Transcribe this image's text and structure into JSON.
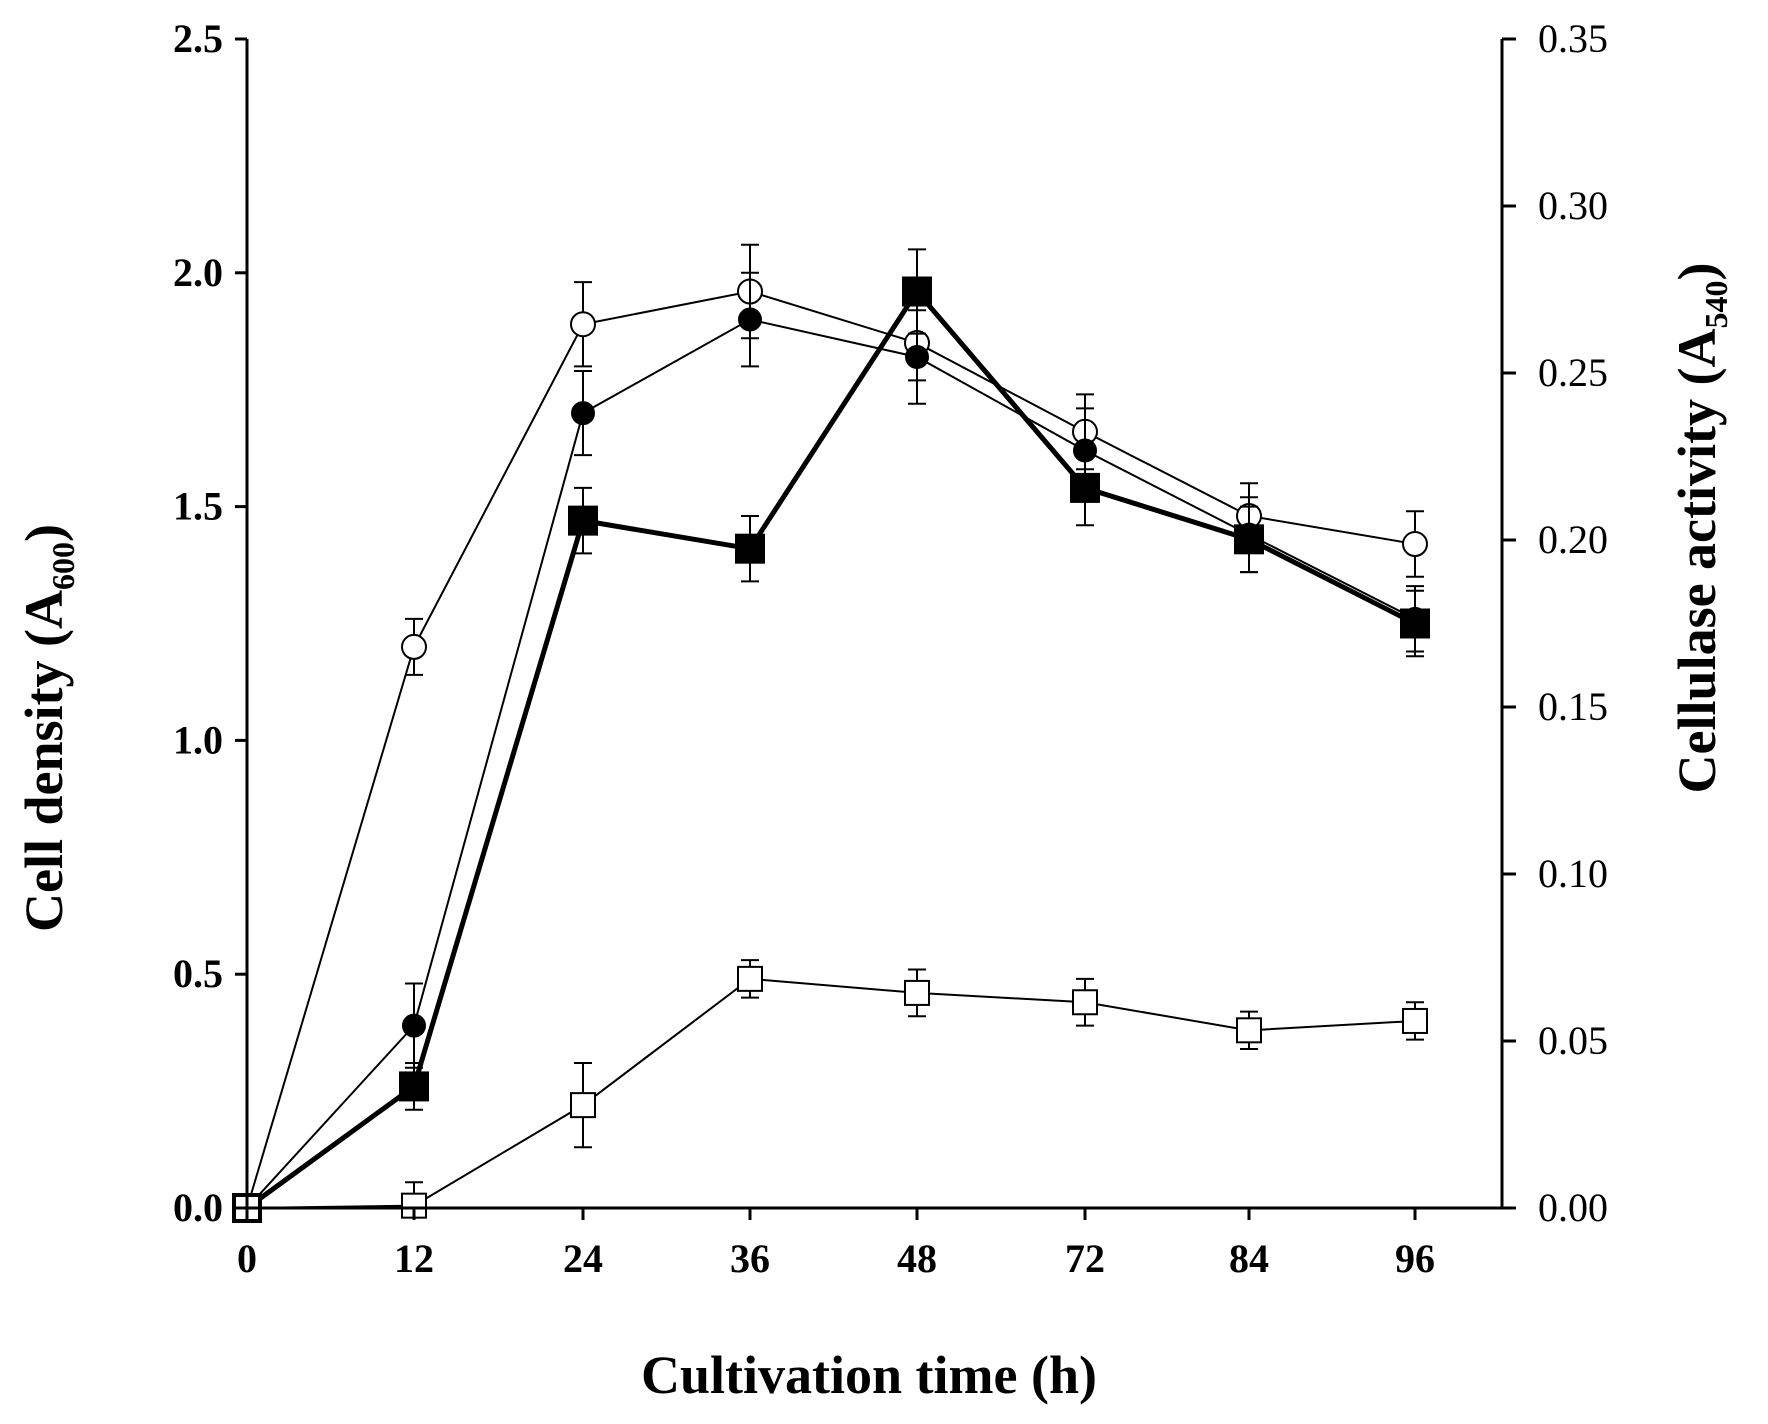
{
  "chart_data": {
    "type": "line",
    "title": "",
    "xlabel": "Cultivation time (h)",
    "ylabel_left": {
      "main": "Cell density (A",
      "sub": "600",
      "close": ")"
    },
    "ylabel_right": {
      "main": "Cellulase activity (A",
      "sub": "540",
      "close": ")"
    },
    "categories": [
      "0",
      "12",
      "24",
      "36",
      "48",
      "72",
      "84",
      "96"
    ],
    "y_left": {
      "range": [
        0,
        2.5
      ],
      "ticks": [
        "0.0",
        "0.5",
        "1.0",
        "1.5",
        "2.0",
        "2.5"
      ]
    },
    "y_right": {
      "range": [
        0,
        0.35
      ],
      "ticks": [
        "0.00",
        "0.05",
        "0.10",
        "0.15",
        "0.20",
        "0.25",
        "0.30",
        "0.35"
      ]
    },
    "series": [
      {
        "name": "open-circle",
        "axis": "left",
        "marker": "circle",
        "filled": false,
        "line_width": 2,
        "values": [
          0,
          1.2,
          1.89,
          1.96,
          1.85,
          1.66,
          1.48,
          1.42
        ],
        "errors": [
          0,
          0.06,
          0.09,
          0.1,
          0.08,
          0.08,
          0.07,
          0.07
        ]
      },
      {
        "name": "filled-circle",
        "axis": "left",
        "marker": "circle",
        "filled": true,
        "line_width": 2,
        "values": [
          0,
          0.39,
          1.7,
          1.9,
          1.82,
          1.62,
          1.44,
          1.26
        ],
        "errors": [
          0,
          0.09,
          0.09,
          0.1,
          0.1,
          0.09,
          0.08,
          0.07
        ]
      },
      {
        "name": "filled-square",
        "axis": "left",
        "marker": "square",
        "filled": true,
        "line_width": 5,
        "values": [
          0,
          0.26,
          1.47,
          1.41,
          1.96,
          1.54,
          1.43,
          1.25
        ],
        "errors": [
          0,
          0.05,
          0.07,
          0.07,
          0.09,
          0.08,
          0.07,
          0.07
        ]
      },
      {
        "name": "open-square",
        "axis": "left",
        "marker": "square",
        "filled": false,
        "line_width": 2,
        "values": [
          0,
          0.005,
          0.22,
          0.49,
          0.46,
          0.44,
          0.38,
          0.4
        ],
        "errors": [
          0,
          0.05,
          0.09,
          0.04,
          0.05,
          0.05,
          0.04,
          0.04
        ]
      }
    ]
  }
}
